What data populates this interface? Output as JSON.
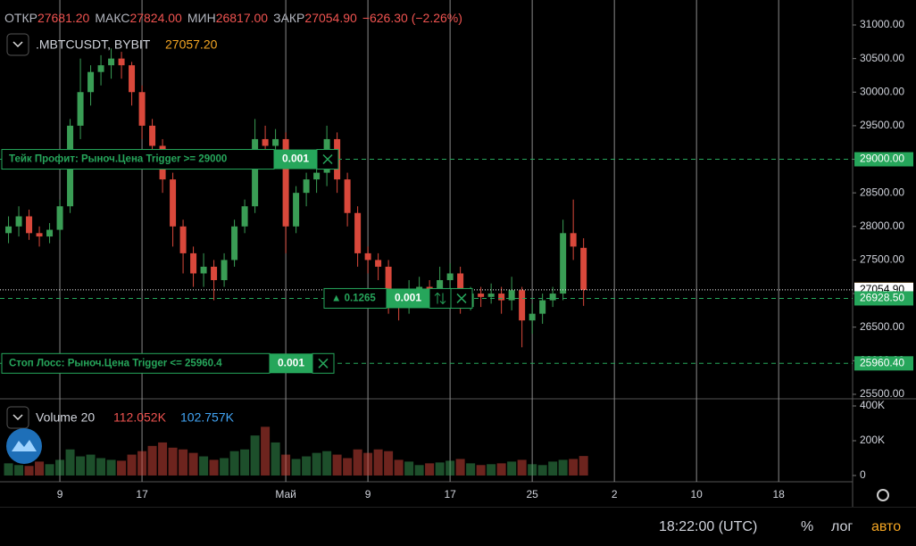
{
  "legend": {
    "open_label": "ОТКР",
    "open": "27681.20",
    "high_label": "МАКС",
    "high": "27824.00",
    "low_label": "МИН",
    "low": "26817.00",
    "close_label": "ЗАКР",
    "close": "27054.90",
    "change": "−626.30 (−2.26%)"
  },
  "symbol": ".MBTCUSDT, BYBIT",
  "symbol_price": "27057.20",
  "chart_data": [
    {
      "type": "candlestick",
      "up_color": "#3a9d55",
      "down_color": "#d9483b",
      "x": [
        4,
        5,
        6,
        7,
        8,
        9,
        10,
        11,
        12,
        13,
        14,
        15,
        16,
        17,
        18,
        19,
        20,
        21,
        22,
        23,
        24,
        25,
        26,
        27,
        28,
        29,
        30,
        31,
        32,
        33,
        34,
        35,
        36,
        37,
        38,
        39,
        40,
        41,
        42,
        43,
        44,
        45,
        46,
        47,
        48,
        49,
        50,
        51,
        52,
        53,
        54,
        55,
        56,
        57,
        58,
        59,
        60
      ],
      "open": [
        27900,
        28000,
        28150,
        27900,
        27850,
        27950,
        28300,
        29500,
        30000,
        30300,
        30400,
        30500,
        30400,
        30000,
        29500,
        29200,
        28700,
        28000,
        27600,
        27300,
        27400,
        27200,
        27500,
        28000,
        28300,
        29300,
        29200,
        29300,
        28000,
        28500,
        28700,
        28800,
        29300,
        28700,
        28200,
        27600,
        27500,
        27400,
        26900,
        26800,
        27000,
        27100,
        27000,
        27200,
        27300,
        26800,
        27000,
        26950,
        27000,
        26900,
        27050,
        26600,
        26700,
        26900,
        27000,
        27900,
        27681.2
      ],
      "high": [
        28150,
        28300,
        28250,
        28000,
        28050,
        28400,
        29600,
        30500,
        30400,
        30550,
        30650,
        30600,
        30450,
        30100,
        29600,
        29300,
        28800,
        28100,
        27700,
        27600,
        27500,
        27600,
        28100,
        28400,
        29600,
        29500,
        29450,
        29400,
        28600,
        28800,
        28900,
        29500,
        29400,
        28800,
        28300,
        27700,
        27600,
        27500,
        27000,
        27200,
        27250,
        27200,
        27400,
        27450,
        27400,
        27100,
        27100,
        27150,
        27100,
        27250,
        27100,
        26850,
        27000,
        27100,
        28100,
        28400,
        27824
      ],
      "low": [
        27750,
        27850,
        27800,
        27700,
        27750,
        27800,
        28200,
        29300,
        29800,
        30100,
        30200,
        30200,
        29800,
        29300,
        29000,
        28500,
        27700,
        27300,
        27100,
        27100,
        26900,
        27100,
        27400,
        27900,
        28200,
        28900,
        29000,
        27600,
        27900,
        28300,
        28500,
        28600,
        28500,
        28000,
        27400,
        27300,
        27200,
        26700,
        26600,
        26700,
        26900,
        26850,
        26900,
        27000,
        26700,
        26750,
        26800,
        26850,
        26700,
        26750,
        26200,
        26400,
        26550,
        26800,
        26900,
        27500,
        26817
      ],
      "close": [
        28000,
        28150,
        27900,
        27850,
        27950,
        28300,
        29500,
        30000,
        30300,
        30400,
        30500,
        30400,
        30000,
        29500,
        29200,
        28700,
        28000,
        27600,
        27300,
        27400,
        27200,
        27500,
        28000,
        28300,
        29300,
        29200,
        29300,
        28000,
        28500,
        28700,
        28800,
        29300,
        28700,
        28200,
        27600,
        27500,
        27400,
        26900,
        26800,
        27000,
        27100,
        27000,
        27200,
        27300,
        26800,
        27000,
        26950,
        27000,
        26900,
        27050,
        26600,
        26700,
        26900,
        27000,
        27900,
        27700,
        27054.9
      ],
      "xlim": [
        3.17,
        86.2
      ],
      "xticks": [
        {
          "value": 9,
          "label": "9"
        },
        {
          "value": 17,
          "label": "17"
        },
        {
          "value": 31,
          "label": "Май"
        },
        {
          "value": 39,
          "label": "9"
        },
        {
          "value": 47,
          "label": "17"
        },
        {
          "value": 55,
          "label": "25"
        },
        {
          "value": 63,
          "label": "2"
        },
        {
          "value": 71,
          "label": "10"
        },
        {
          "value": 79,
          "label": "18"
        }
      ],
      "ylim": [
        25433,
        31372
      ],
      "yticks": [
        {
          "value": 25500,
          "label": "25500.00"
        },
        {
          "value": 26000,
          "label": "26000.00"
        },
        {
          "value": 26500,
          "label": "26500.00"
        },
        {
          "value": 27000,
          "label": "27000.00"
        },
        {
          "value": 27500,
          "label": "27500.00"
        },
        {
          "value": 28000,
          "label": "28000.00"
        },
        {
          "value": 28500,
          "label": "28500.00"
        },
        {
          "value": 29000,
          "label": "29000.00"
        },
        {
          "value": 29500,
          "label": "29500.00"
        },
        {
          "value": 30000,
          "label": "30000.00"
        },
        {
          "value": 30500,
          "label": "30500.00"
        },
        {
          "value": 31000,
          "label": "31000.00"
        }
      ],
      "price_lines": [
        {
          "value": 29000,
          "label": "29000.00",
          "color": "#26a65b",
          "text_color": "#ffffff",
          "style": "dashed"
        },
        {
          "value": 27057.2,
          "label": "27057.20",
          "color": "#f5a623",
          "text_color": "#000000",
          "style": "none"
        },
        {
          "value": 27054.9,
          "label": "27054.90",
          "color": "#ffffff",
          "text_color": "#000000",
          "style": "dotted"
        },
        {
          "value": 26928.5,
          "label": "26928.50",
          "color": "#26a65b",
          "text_color": "#ffffff",
          "style": "dashed"
        },
        {
          "value": 25960.4,
          "label": "25960.40",
          "color": "#26a65b",
          "text_color": "#ffffff",
          "style": "dashed"
        }
      ]
    },
    {
      "type": "bar",
      "title": "Volume 20",
      "legend_values": [
        "112.052K",
        "102.757K"
      ],
      "values": [
        70000,
        60000,
        55000,
        80000,
        65000,
        90000,
        150000,
        110000,
        120000,
        100000,
        90000,
        85000,
        120000,
        140000,
        170000,
        190000,
        160000,
        150000,
        130000,
        110000,
        90000,
        100000,
        140000,
        150000,
        230000,
        280000,
        190000,
        120000,
        95000,
        110000,
        130000,
        140000,
        120000,
        100000,
        150000,
        130000,
        150000,
        140000,
        90000,
        80000,
        60000,
        70000,
        75000,
        85000,
        95000,
        70000,
        60000,
        65000,
        70000,
        80000,
        90000,
        65000,
        60000,
        80000,
        90000,
        95000,
        112052
      ],
      "ylim": [
        -36000,
        441000
      ],
      "yticks": [
        0,
        {
          "value": 200000,
          "label": "200K"
        },
        {
          "value": 400000,
          "label": "400K"
        }
      ]
    }
  ],
  "orders": [
    {
      "text": "Тейк Профит: Рыноч.Цена Trigger >= 29000",
      "qty": "0.001"
    },
    {
      "text": "Стоп Лосс: Рыноч.Цена Trigger <= 25960.4",
      "qty": "0.001"
    },
    {
      "text": "▲ 0.1265",
      "qty": "0.001"
    }
  ],
  "footer": {
    "time": "18:22:00 (UTC)",
    "percent": "%",
    "log": "лог",
    "auto": "авто"
  }
}
